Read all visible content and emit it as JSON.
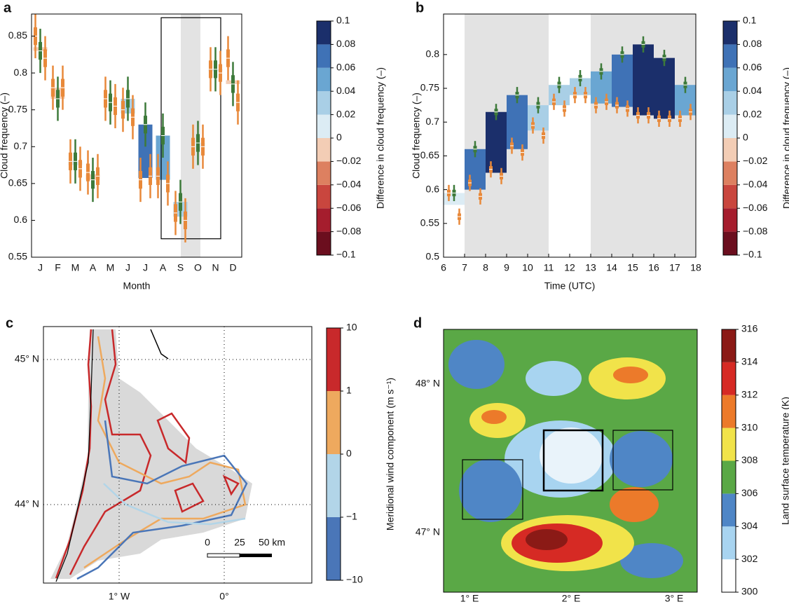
{
  "chart_data": [
    {
      "type": "box",
      "label": "a",
      "ylabel": "Cloud frequency (–)",
      "xlabel": "Month",
      "categories": [
        "J",
        "F",
        "M",
        "A",
        "M",
        "J",
        "J",
        "A",
        "S",
        "O",
        "N",
        "D"
      ],
      "series": [
        {
          "color": "#e8893a",
          "values": [
            0.85,
            0.78,
            0.68,
            0.665,
            0.765,
            0.75,
            0.655,
            0.66,
            0.61,
            0.7,
            0.805,
            0.82
          ],
          "error": 0.03
        },
        {
          "color": "#3d7a3a",
          "values": [
            0.83,
            0.765,
            0.68,
            0.655,
            0.76,
            0.765,
            0.73,
            0.715,
            0.625,
            0.705,
            0.805,
            0.785
          ],
          "error": 0.03
        },
        {
          "color": "#e8893a",
          "values": [
            0.82,
            0.78,
            0.67,
            0.66,
            0.755,
            0.74,
            0.66,
            0.65,
            0.6,
            0.7,
            0.8,
            0.76
          ],
          "error": 0.03
        }
      ],
      "ylim": [
        0.55,
        0.88
      ],
      "yticks": [
        0.55,
        0.6,
        0.65,
        0.7,
        0.75,
        0.8,
        0.85
      ],
      "colorbar": {
        "label": "Difference in cloud frequency (–)",
        "ticks": [
          {
            "value": -0.1,
            "label": "−0.1"
          },
          {
            "value": -0.08,
            "label": "−0.08"
          },
          {
            "value": -0.06,
            "label": "−0.06"
          },
          {
            "value": -0.04,
            "label": "−0.04"
          },
          {
            "value": -0.02,
            "label": "−0.02"
          },
          0,
          0.02,
          0.04,
          0.06,
          0.08,
          0.1
        ],
        "colors": [
          "#6b0e1e",
          "#a51d2d",
          "#c9463e",
          "#dd8060",
          "#f3cdb5",
          "#dcecf4",
          "#a9cfe6",
          "#6aa6d2",
          "#3f72b6",
          "#1b2f6b"
        ]
      }
    },
    {
      "type": "box",
      "label": "b",
      "ylabel": "Cloud frequency (–)",
      "xlabel": "Time (UTC)",
      "x": [
        6.5,
        7.5,
        8.5,
        9.5,
        10.5,
        11.5,
        12.5,
        13.5,
        14.5,
        15.5,
        16.5,
        17.5
      ],
      "series": [
        {
          "color": "#e8893a",
          "values": [
            0.595,
            0.61,
            0.63,
            0.665,
            0.695,
            0.73,
            0.74,
            0.725,
            0.725,
            0.71,
            0.705,
            0.705
          ],
          "error": 0.012
        },
        {
          "color": "#3d7a3a",
          "values": [
            0.595,
            0.66,
            0.715,
            0.74,
            0.725,
            0.755,
            0.765,
            0.775,
            0.8,
            0.815,
            0.795,
            0.755
          ],
          "error": 0.012
        },
        {
          "color": "#e8893a",
          "values": [
            0.56,
            0.59,
            0.62,
            0.655,
            0.68,
            0.72,
            0.74,
            0.73,
            0.72,
            0.71,
            0.705,
            0.715
          ],
          "error": 0.012
        }
      ],
      "shaded": [
        [
          7,
          11
        ],
        [
          13,
          18
        ]
      ],
      "xlim": [
        6,
        18
      ],
      "xticks": [
        6,
        7,
        8,
        9,
        10,
        11,
        12,
        13,
        14,
        15,
        16,
        17,
        18
      ],
      "ylim": [
        0.5,
        0.86
      ],
      "yticks": [
        0.5,
        0.55,
        0.6,
        0.65,
        0.7,
        0.75,
        0.8
      ],
      "colorbar": {
        "label": "Difference in cloud frequency (–)",
        "ticks": [
          {
            "value": -0.1,
            "label": "−0.1"
          },
          {
            "value": -0.08,
            "label": "−0.08"
          },
          {
            "value": -0.06,
            "label": "−0.06"
          },
          {
            "value": -0.04,
            "label": "−0.04"
          },
          {
            "value": -0.02,
            "label": "−0.02"
          },
          0,
          0.02,
          0.04,
          0.06,
          0.08,
          0.1
        ],
        "colors": [
          "#6b0e1e",
          "#a51d2d",
          "#c9463e",
          "#dd8060",
          "#f3cdb5",
          "#dcecf4",
          "#a9cfe6",
          "#6aa6d2",
          "#3f72b6",
          "#1b2f6b"
        ]
      }
    },
    {
      "type": "map",
      "label": "c",
      "lat_labels": [
        "45° N",
        "44° N"
      ],
      "lon_labels": [
        "1° W",
        "0°"
      ],
      "scale_labels": [
        "0",
        "25",
        "50 km"
      ],
      "colorbar": {
        "label": "Meridional wind component (m s⁻¹)",
        "spacing": "uniform",
        "ticks": [
          {
            "value": -10,
            "label": "−10"
          },
          {
            "value": -1,
            "label": "−1"
          },
          0,
          1,
          10
        ],
        "colors": [
          "#4a76b8",
          "#b2d5e8",
          "#eea95e",
          "#c8292b"
        ]
      }
    },
    {
      "type": "map",
      "label": "d",
      "lat_labels": [
        "48° N",
        "47° N"
      ],
      "lon_labels": [
        "1° E",
        "2° E",
        "3° E"
      ],
      "colorbar": {
        "label": "Land surface temperature (K)",
        "ticks": [
          300,
          302,
          304,
          306,
          308,
          310,
          312,
          314,
          316
        ],
        "colors": [
          "#ffffff",
          "#a8d4f0",
          "#4f86c6",
          "#5aa846",
          "#f1e34a",
          "#ec7a2a",
          "#d62a24",
          "#8b1a16"
        ]
      }
    }
  ]
}
